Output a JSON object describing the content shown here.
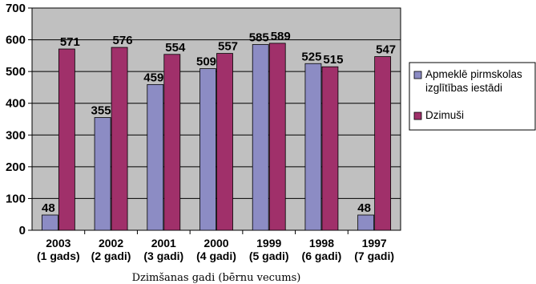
{
  "chart_data": {
    "type": "bar",
    "categories": [
      [
        "2003",
        "(1 gads)"
      ],
      [
        "2002",
        "(2 gadi)"
      ],
      [
        "2001",
        "(3 gadi)"
      ],
      [
        "2000",
        "(4 gadi)"
      ],
      [
        "1999",
        "(5 gadi)"
      ],
      [
        "1998",
        "(6 gadi)"
      ],
      [
        "1997",
        "(7 gadi)"
      ]
    ],
    "series": [
      {
        "name_lines": [
          "Apmeklē pirmskolas",
          "izglītības iestādi"
        ],
        "values": [
          48,
          355,
          459,
          509,
          585,
          525,
          48
        ],
        "color": "#8c8cc4"
      },
      {
        "name_lines": [
          "Dzimuši"
        ],
        "values": [
          571,
          576,
          554,
          557,
          589,
          515,
          547
        ],
        "color": "#a0306a"
      }
    ],
    "title": "",
    "xlabel": "Dzimšanas gadi (bērnu vecums)",
    "ylabel": "",
    "ylim": [
      0,
      700
    ],
    "yticks": [
      0,
      100,
      200,
      300,
      400,
      500,
      600,
      700
    ],
    "grid": true,
    "legend_position": "right",
    "plot_background": "#c0c0c0"
  }
}
